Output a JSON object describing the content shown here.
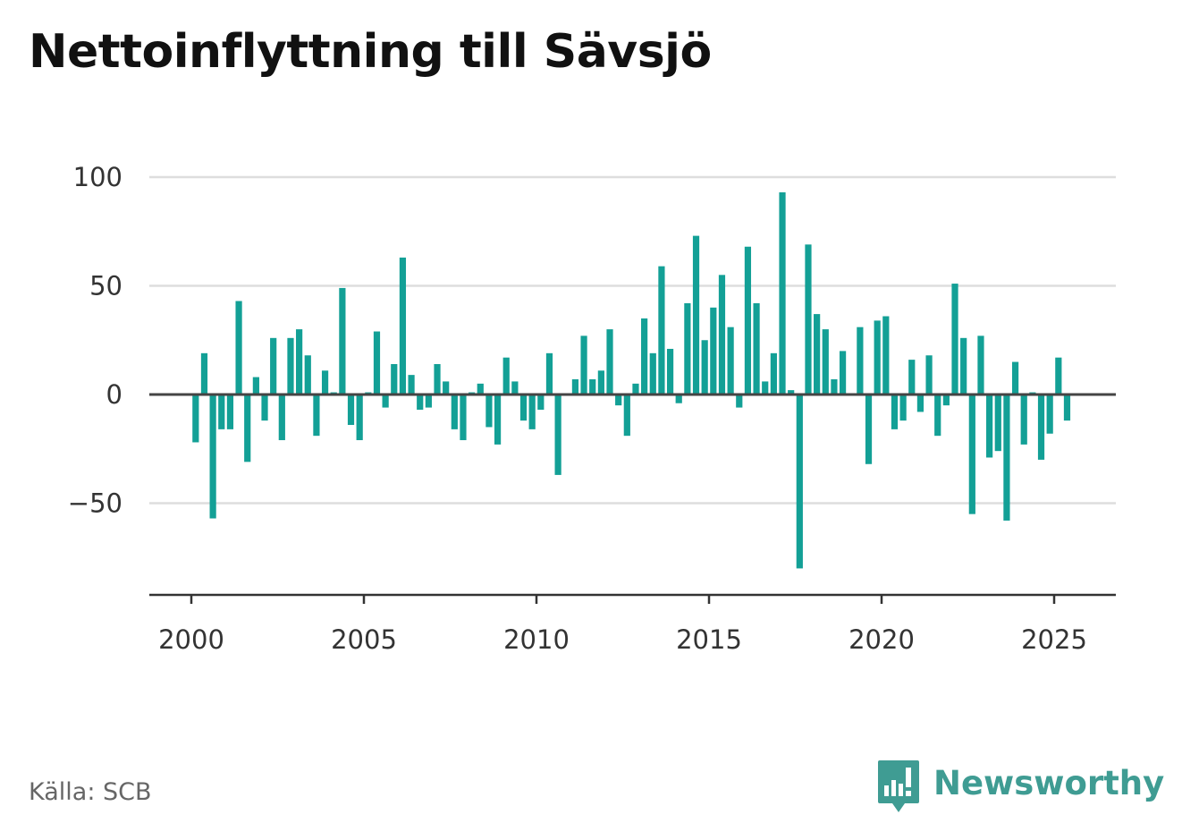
{
  "header": {
    "title": "Nettoinflyttning till Sävsjö"
  },
  "footer": {
    "source": "Källa: SCB",
    "brand_name": "Newsworthy",
    "brand_icon": "newsworthy-chart-bubble-icon"
  },
  "colors": {
    "bar": "#13a096",
    "zero_line": "#444444",
    "grid": "#dddddd",
    "brand": "#3f9c93"
  },
  "chart_data": {
    "type": "bar",
    "title": "Nettoinflyttning till Sävsjö",
    "xlabel": "",
    "ylabel": "",
    "x_ticks": [
      "2000",
      "2005",
      "2010",
      "2015",
      "2020",
      "2025"
    ],
    "y_ticks": [
      "100",
      "50",
      "0",
      "−50"
    ],
    "ylim": [
      -90,
      110
    ],
    "xlim": [
      "1998-10",
      "2026-12"
    ],
    "grid": true,
    "legend": "none",
    "frequency": "quarterly",
    "series": [
      {
        "x": [
          "2000-Q1",
          "2000-Q2",
          "2000-Q3",
          "2000-Q4",
          "2001-Q1",
          "2001-Q2",
          "2001-Q3",
          "2001-Q4",
          "2002-Q1",
          "2002-Q2",
          "2002-Q3",
          "2002-Q4",
          "2003-Q1",
          "2003-Q2",
          "2003-Q3",
          "2003-Q4",
          "2004-Q1",
          "2004-Q2",
          "2004-Q3",
          "2004-Q4",
          "2005-Q1",
          "2005-Q2",
          "2005-Q3",
          "2005-Q4",
          "2006-Q1",
          "2006-Q2",
          "2006-Q3",
          "2006-Q4",
          "2007-Q1",
          "2007-Q2",
          "2007-Q3",
          "2007-Q4",
          "2008-Q1",
          "2008-Q2",
          "2008-Q3",
          "2008-Q4",
          "2009-Q1",
          "2009-Q2",
          "2009-Q3",
          "2009-Q4",
          "2010-Q1",
          "2010-Q2",
          "2010-Q3",
          "2010-Q4",
          "2011-Q1",
          "2011-Q2",
          "2011-Q3",
          "2011-Q4",
          "2012-Q1",
          "2012-Q2",
          "2012-Q3",
          "2012-Q4",
          "2013-Q1",
          "2013-Q2",
          "2013-Q3",
          "2013-Q4",
          "2014-Q1",
          "2014-Q2",
          "2014-Q3",
          "2014-Q4",
          "2015-Q1",
          "2015-Q2",
          "2015-Q3",
          "2015-Q4",
          "2016-Q1",
          "2016-Q2",
          "2016-Q3",
          "2016-Q4",
          "2017-Q1",
          "2017-Q2",
          "2017-Q3",
          "2017-Q4",
          "2018-Q1",
          "2018-Q2",
          "2018-Q3",
          "2018-Q4",
          "2019-Q1",
          "2019-Q2",
          "2019-Q3",
          "2019-Q4",
          "2020-Q1",
          "2020-Q2",
          "2020-Q3",
          "2020-Q4",
          "2021-Q1",
          "2021-Q2",
          "2021-Q3",
          "2021-Q4",
          "2022-Q1",
          "2022-Q2",
          "2022-Q3",
          "2022-Q4",
          "2023-Q1",
          "2023-Q2",
          "2023-Q3",
          "2023-Q4",
          "2024-Q1",
          "2024-Q2",
          "2024-Q3",
          "2024-Q4",
          "2025-Q1",
          "2025-Q2"
        ],
        "values": [
          -22,
          19,
          -57,
          -16,
          -16,
          43,
          -31,
          8,
          -12,
          26,
          -21,
          26,
          30,
          18,
          -19,
          11,
          1,
          49,
          -14,
          -21,
          1,
          29,
          -6,
          14,
          63,
          9,
          -7,
          -6,
          14,
          6,
          -16,
          -21,
          1,
          5,
          -15,
          -23,
          17,
          6,
          -12,
          -16,
          -7,
          19,
          -37,
          0,
          7,
          27,
          7,
          11,
          30,
          -5,
          -19,
          5,
          35,
          19,
          59,
          21,
          -4,
          42,
          73,
          25,
          40,
          55,
          31,
          -6,
          68,
          42,
          6,
          19,
          93,
          2,
          -80,
          69,
          37,
          30,
          7,
          20,
          0,
          31,
          -32,
          34,
          36,
          -16,
          -12,
          16,
          -8,
          18,
          -19,
          -5,
          51,
          26,
          -55,
          27,
          -29,
          -26,
          -58,
          15,
          -23,
          1,
          -30,
          -18,
          17,
          -12
        ]
      }
    ]
  }
}
